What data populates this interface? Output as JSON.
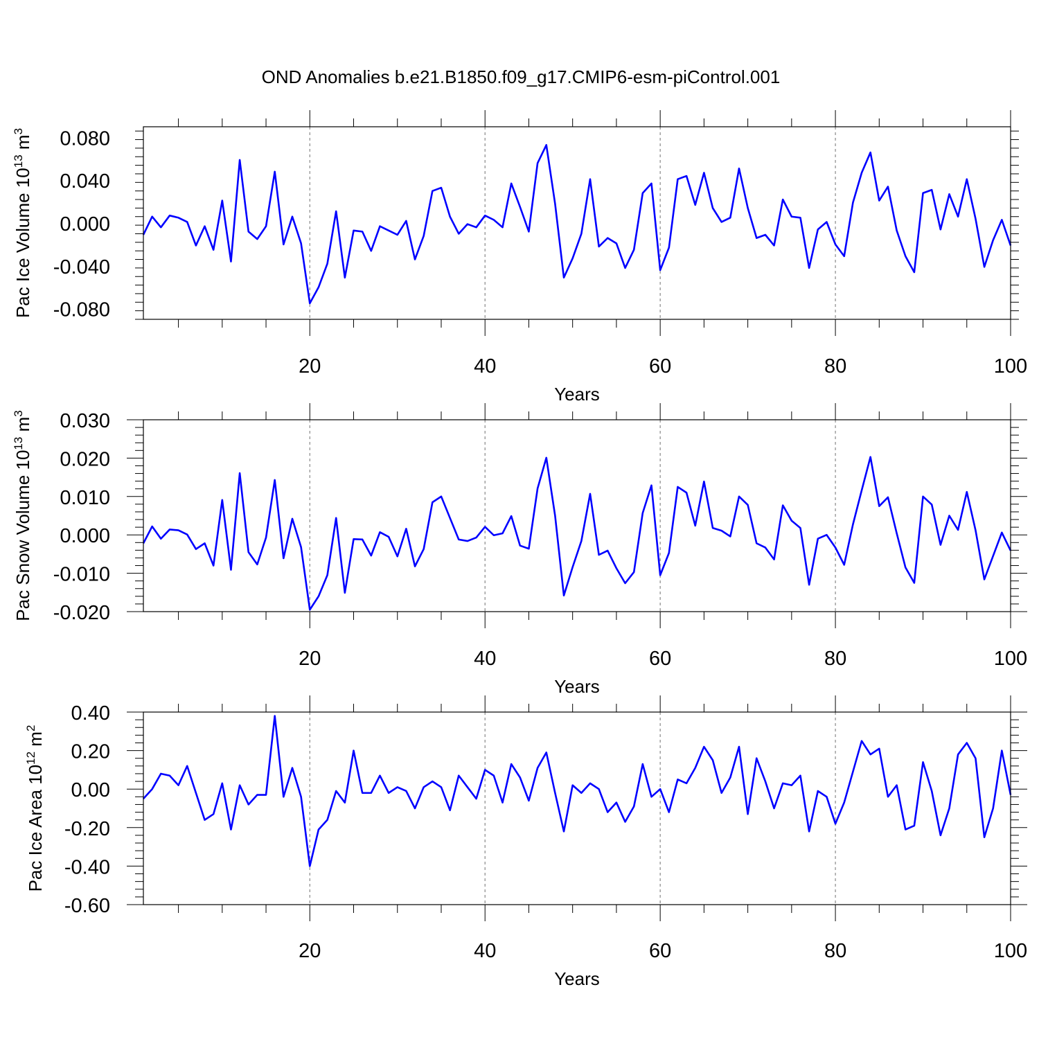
{
  "figure": {
    "title": "OND Anomalies b.e21.B1850.f09_g17.CMIP6-esm-piControl.001"
  },
  "chart_data": [
    {
      "type": "line",
      "ylabel": "Pac Ice Volume 10",
      "ylabel_exp": "13",
      "ylabel_unit": " m",
      "ylabel_unit_exp": "3",
      "xlabel": "Years",
      "xlim": [
        1,
        100
      ],
      "ylim": [
        -0.09,
        0.09
      ],
      "yticks": [
        -0.08,
        -0.04,
        0.0,
        0.04,
        0.08
      ],
      "ytick_labels": [
        "-0.080",
        "-0.040",
        "0.000",
        "0.040",
        "0.080"
      ],
      "xticks": [
        20,
        40,
        60,
        80,
        100
      ],
      "xtick_labels": [
        "20",
        "40",
        "60",
        "80",
        "100"
      ],
      "grid_x": [
        20,
        40,
        60,
        80
      ],
      "series_color": "#0000ff",
      "series": [
        {
          "x": [
            1,
            2,
            3,
            4,
            5,
            6,
            7,
            8,
            9,
            10,
            11,
            12,
            13,
            14,
            15,
            16,
            17,
            18,
            19,
            20,
            21,
            22,
            23,
            24,
            25,
            26,
            27,
            28,
            29,
            30,
            31,
            32,
            33,
            34,
            35,
            36,
            37,
            38,
            39,
            40,
            41,
            42,
            43,
            44,
            45,
            46,
            47,
            48,
            49,
            50,
            51,
            52,
            53,
            54,
            55,
            56,
            57,
            58,
            59,
            60,
            61,
            62,
            63,
            64,
            65,
            66,
            67,
            68,
            69,
            70,
            71,
            72,
            73,
            74,
            75,
            76,
            77,
            78,
            79,
            80,
            81,
            82,
            83,
            84,
            85,
            86,
            87,
            88,
            89,
            90,
            91,
            92,
            93,
            94,
            95,
            96,
            97,
            98,
            99,
            100
          ],
          "values": [
            -0.011,
            0.006,
            -0.004,
            0.007,
            0.005,
            0.001,
            -0.021,
            -0.003,
            -0.025,
            0.021,
            -0.036,
            0.059,
            -0.008,
            -0.015,
            -0.003,
            0.048,
            -0.02,
            0.006,
            -0.019,
            -0.075,
            -0.06,
            -0.038,
            0.011,
            -0.051,
            -0.007,
            -0.008,
            -0.026,
            -0.003,
            -0.007,
            -0.011,
            0.002,
            -0.034,
            -0.012,
            0.03,
            0.033,
            0.006,
            -0.01,
            -0.001,
            -0.004,
            0.007,
            0.003,
            -0.004,
            0.037,
            0.015,
            -0.008,
            0.056,
            0.073,
            0.018,
            -0.051,
            -0.033,
            -0.01,
            0.041,
            -0.022,
            -0.014,
            -0.019,
            -0.042,
            -0.025,
            0.028,
            0.037,
            -0.044,
            -0.023,
            0.041,
            0.044,
            0.017,
            0.047,
            0.014,
            0.001,
            0.005,
            0.051,
            0.014,
            -0.014,
            -0.011,
            -0.021,
            0.022,
            0.006,
            0.005,
            -0.042,
            -0.006,
            0.001,
            -0.02,
            -0.031,
            0.019,
            0.047,
            0.066,
            0.021,
            0.034,
            -0.007,
            -0.031,
            -0.046,
            0.028,
            0.031,
            -0.006,
            0.027,
            0.006,
            0.041,
            0.004,
            -0.041,
            -0.016,
            0.003,
            -0.021
          ]
        }
      ]
    },
    {
      "type": "line",
      "ylabel": "Pac Snow Volume 10",
      "ylabel_exp": "13",
      "ylabel_unit": " m",
      "ylabel_unit_exp": "3",
      "xlabel": "Years",
      "xlim": [
        1,
        100
      ],
      "ylim": [
        -0.02,
        0.03
      ],
      "yticks": [
        -0.02,
        -0.01,
        0.0,
        0.01,
        0.02,
        0.03
      ],
      "ytick_labels": [
        "-0.020",
        "-0.010",
        "0.000",
        "0.010",
        "0.020",
        "0.030"
      ],
      "xticks": [
        20,
        40,
        60,
        80,
        100
      ],
      "xtick_labels": [
        "20",
        "40",
        "60",
        "80",
        "100"
      ],
      "grid_x": [
        20,
        40,
        60,
        80
      ],
      "series_color": "#0000ff",
      "series": [
        {
          "x": [
            1,
            2,
            3,
            4,
            5,
            6,
            7,
            8,
            9,
            10,
            11,
            12,
            13,
            14,
            15,
            16,
            17,
            18,
            19,
            20,
            21,
            22,
            23,
            24,
            25,
            26,
            27,
            28,
            29,
            30,
            31,
            32,
            33,
            34,
            35,
            36,
            37,
            38,
            39,
            40,
            41,
            42,
            43,
            44,
            45,
            46,
            47,
            48,
            49,
            50,
            51,
            52,
            53,
            54,
            55,
            56,
            57,
            58,
            59,
            60,
            61,
            62,
            63,
            64,
            65,
            66,
            67,
            68,
            69,
            70,
            71,
            72,
            73,
            74,
            75,
            76,
            77,
            78,
            79,
            80,
            81,
            82,
            83,
            84,
            85,
            86,
            87,
            88,
            89,
            90,
            91,
            92,
            93,
            94,
            95,
            96,
            97,
            98,
            99,
            100
          ],
          "values": [
            -0.0022,
            0.0022,
            -0.001,
            0.0014,
            0.0012,
            0.0001,
            -0.0037,
            -0.0022,
            -0.008,
            0.0091,
            -0.0091,
            0.0161,
            -0.0045,
            -0.0077,
            -0.0007,
            0.0143,
            -0.0061,
            0.0042,
            -0.0032,
            -0.0195,
            -0.016,
            -0.0105,
            0.0044,
            -0.0151,
            -0.0011,
            -0.0012,
            -0.0054,
            0.0007,
            -0.0005,
            -0.0056,
            0.0016,
            -0.0082,
            -0.0037,
            0.0085,
            0.01,
            0.0044,
            -0.0012,
            -0.0016,
            -0.0007,
            0.0021,
            -0.0001,
            0.0004,
            0.0049,
            -0.0028,
            -0.0036,
            0.0121,
            0.0201,
            0.005,
            -0.0158,
            -0.0084,
            -0.0016,
            0.0107,
            -0.0052,
            -0.0041,
            -0.0087,
            -0.0126,
            -0.0097,
            0.0057,
            0.0129,
            -0.0105,
            -0.0047,
            0.0125,
            0.011,
            0.0024,
            0.0139,
            0.0018,
            0.0011,
            -0.0004,
            0.01,
            0.0078,
            -0.0022,
            -0.0033,
            -0.0064,
            0.0077,
            0.0037,
            0.0018,
            -0.013,
            -0.001,
            0.0,
            -0.0033,
            -0.0078,
            0.0027,
            0.0116,
            0.0203,
            0.0075,
            0.0098,
            0.0004,
            -0.0085,
            -0.0125,
            0.01,
            0.0079,
            -0.0026,
            0.005,
            0.0013,
            0.0112,
            0.0012,
            -0.0116,
            -0.0055,
            0.0006,
            -0.0041
          ]
        }
      ]
    },
    {
      "type": "line",
      "ylabel": "Pac Ice Area 10",
      "ylabel_exp": "12",
      "ylabel_unit": " m",
      "ylabel_unit_exp": "2",
      "xlabel": "Years",
      "xlim": [
        1,
        100
      ],
      "ylim": [
        -0.6,
        0.4
      ],
      "yticks": [
        -0.6,
        -0.4,
        -0.2,
        0.0,
        0.2,
        0.4
      ],
      "ytick_labels": [
        "-0.60",
        "-0.40",
        "-0.20",
        "0.00",
        "0.20",
        "0.40"
      ],
      "xticks": [
        20,
        40,
        60,
        80,
        100
      ],
      "xtick_labels": [
        "20",
        "40",
        "60",
        "80",
        "100"
      ],
      "grid_x": [
        20,
        40,
        60,
        80
      ],
      "series_color": "#0000ff",
      "series": [
        {
          "x": [
            1,
            2,
            3,
            4,
            5,
            6,
            7,
            8,
            9,
            10,
            11,
            12,
            13,
            14,
            15,
            16,
            17,
            18,
            19,
            20,
            21,
            22,
            23,
            24,
            25,
            26,
            27,
            28,
            29,
            30,
            31,
            32,
            33,
            34,
            35,
            36,
            37,
            38,
            39,
            40,
            41,
            42,
            43,
            44,
            45,
            46,
            47,
            48,
            49,
            50,
            51,
            52,
            53,
            54,
            55,
            56,
            57,
            58,
            59,
            60,
            61,
            62,
            63,
            64,
            65,
            66,
            67,
            68,
            69,
            70,
            71,
            72,
            73,
            74,
            75,
            76,
            77,
            78,
            79,
            80,
            81,
            82,
            83,
            84,
            85,
            86,
            87,
            88,
            89,
            90,
            91,
            92,
            93,
            94,
            95,
            96,
            97,
            98,
            99,
            100
          ],
          "values": [
            -0.05,
            0.0,
            0.08,
            0.07,
            0.02,
            0.12,
            -0.02,
            -0.16,
            -0.13,
            0.03,
            -0.21,
            0.02,
            -0.08,
            -0.03,
            -0.03,
            0.38,
            -0.04,
            0.11,
            -0.04,
            -0.4,
            -0.21,
            -0.16,
            -0.01,
            -0.07,
            0.2,
            -0.02,
            -0.02,
            0.07,
            -0.02,
            0.01,
            -0.01,
            -0.1,
            0.01,
            0.04,
            0.01,
            -0.11,
            0.07,
            0.01,
            -0.05,
            0.1,
            0.07,
            -0.07,
            0.13,
            0.06,
            -0.06,
            0.11,
            0.19,
            -0.02,
            -0.22,
            0.02,
            -0.02,
            0.03,
            0.0,
            -0.12,
            -0.07,
            -0.17,
            -0.09,
            0.13,
            -0.04,
            0.0,
            -0.12,
            0.05,
            0.03,
            0.11,
            0.22,
            0.15,
            -0.02,
            0.06,
            0.22,
            -0.13,
            0.16,
            0.04,
            -0.1,
            0.03,
            0.02,
            0.07,
            -0.22,
            -0.01,
            -0.04,
            -0.18,
            -0.07,
            0.09,
            0.25,
            0.18,
            0.21,
            -0.04,
            0.02,
            -0.21,
            -0.19,
            0.14,
            -0.01,
            -0.24,
            -0.1,
            0.18,
            0.24,
            0.16,
            -0.25,
            -0.1,
            0.2,
            -0.03
          ]
        }
      ]
    }
  ]
}
